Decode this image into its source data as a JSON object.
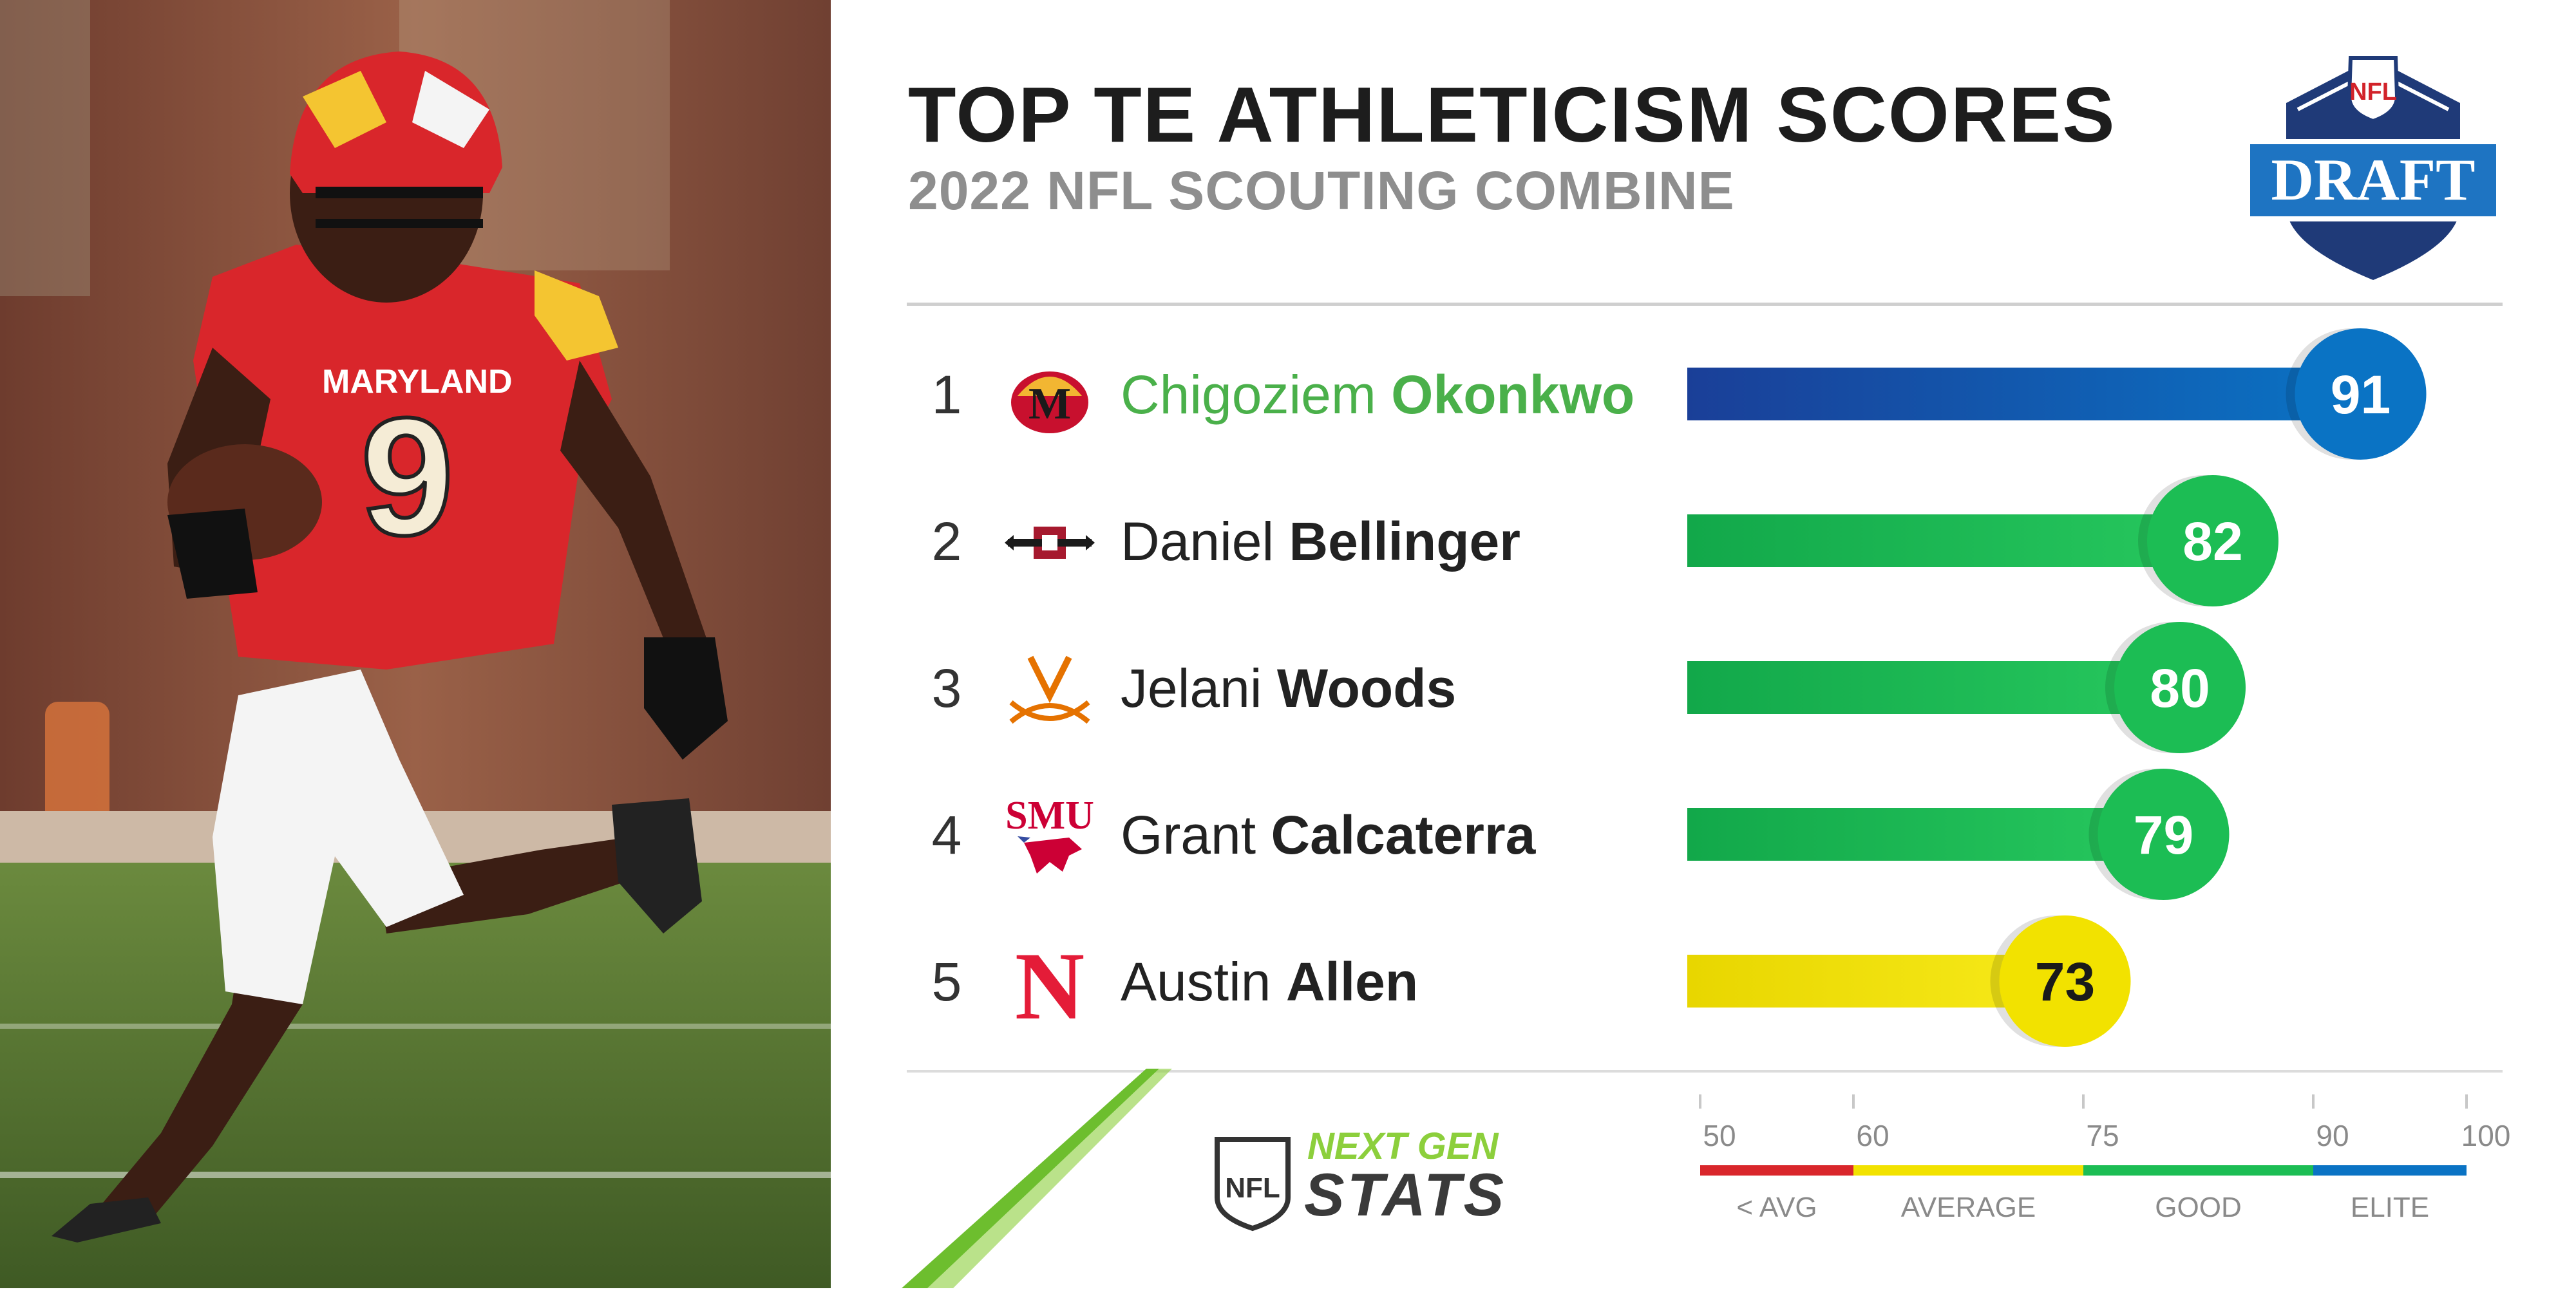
{
  "title": "TOP TE ATHLETICISM SCORES",
  "subtitle": "2022 NFL SCOUTING COMBINE",
  "draft_logo": {
    "shield_text": "NFL",
    "banner_text": "DRAFT"
  },
  "footer": {
    "ngs_line1": "NEXT GEN",
    "ngs_line2": "STATS",
    "nfl_text": "NFL"
  },
  "colors": {
    "elite": "#0a73c4",
    "good": "#1cbd54",
    "average": "#f2e200",
    "below": "#d9262b",
    "lead_name": "#4ab04a"
  },
  "chart_data": {
    "type": "bar",
    "orientation": "horizontal",
    "title": "TOP TE ATHLETICISM SCORES",
    "subtitle": "2022 NFL SCOUTING COMBINE",
    "categories": [
      "Chigoziem Okonkwo",
      "Daniel Bellinger",
      "Jelani Woods",
      "Grant Calcaterra",
      "Austin Allen"
    ],
    "values": [
      91,
      82,
      80,
      79,
      73
    ],
    "xlim": [
      50,
      100
    ],
    "grid": false,
    "players": [
      {
        "rank": "1",
        "first": "Chigoziem",
        "last": "Okonkwo",
        "score": 91,
        "tier": "elite",
        "team_icon": "maryland-terrapins-icon"
      },
      {
        "rank": "2",
        "first": "Daniel",
        "last": "Bellinger",
        "score": 82,
        "tier": "good",
        "team_icon": "san-diego-state-icon"
      },
      {
        "rank": "3",
        "first": "Jelani",
        "last": "Woods",
        "score": 80,
        "tier": "good",
        "team_icon": "virginia-cavaliers-icon"
      },
      {
        "rank": "4",
        "first": "Grant",
        "last": "Calcaterra",
        "score": 79,
        "tier": "good",
        "team_icon": "smu-mustangs-icon",
        "team_text": "SMU"
      },
      {
        "rank": "5",
        "first": "Austin",
        "last": "Allen",
        "score": 73,
        "tier": "average",
        "team_icon": "nebraska-n-icon",
        "team_text": "N"
      }
    ],
    "scale": {
      "ticks": [
        "50",
        "60",
        "75",
        "90",
        "100"
      ],
      "tick_values": [
        50,
        60,
        75,
        90,
        100
      ],
      "segments": [
        {
          "label": "< AVG",
          "from": 50,
          "to": 60,
          "color": "#d9262b"
        },
        {
          "label": "AVERAGE",
          "from": 60,
          "to": 75,
          "color": "#f2e200"
        },
        {
          "label": "GOOD",
          "from": 75,
          "to": 90,
          "color": "#1cbd54"
        },
        {
          "label": "ELITE",
          "from": 90,
          "to": 100,
          "color": "#0a73c4"
        }
      ]
    }
  }
}
